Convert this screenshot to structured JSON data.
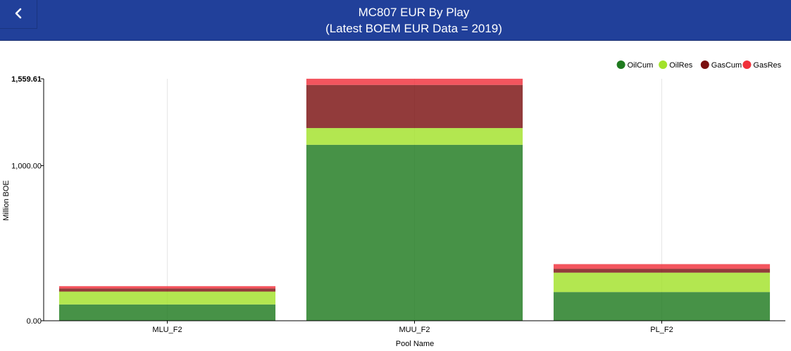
{
  "header": {
    "back_icon": "chevron-left-icon",
    "title_line1": "MC807 EUR By Play",
    "title_line2": "(Latest BOEM EUR Data = 2019)",
    "background_color": "#21409a"
  },
  "chart_data": {
    "type": "bar",
    "stacked": true,
    "categories": [
      "MLU_F2",
      "MUU_F2",
      "PL_F2"
    ],
    "series": [
      {
        "name": "OilCum",
        "color": "#1f7a1f",
        "values": [
          105,
          1134,
          185
        ]
      },
      {
        "name": "OilRes",
        "color": "#a2e22a",
        "values": [
          83,
          108,
          125
        ]
      },
      {
        "name": "GasCum",
        "color": "#7a1010",
        "values": [
          20,
          278,
          25
        ]
      },
      {
        "name": "GasRes",
        "color": "#f0303a",
        "values": [
          15,
          40,
          30
        ]
      }
    ],
    "xlabel": "Pool Name",
    "ylabel": "Million BOE",
    "ylim": [
      0,
      1559.61
    ],
    "yticks": [
      {
        "value": 0,
        "label": "0.00"
      },
      {
        "value": 1000,
        "label": "1,000.00"
      },
      {
        "value": 1559.61,
        "label": "1,559.61"
      }
    ],
    "legend_position": "top-right",
    "grid": "vertical"
  }
}
